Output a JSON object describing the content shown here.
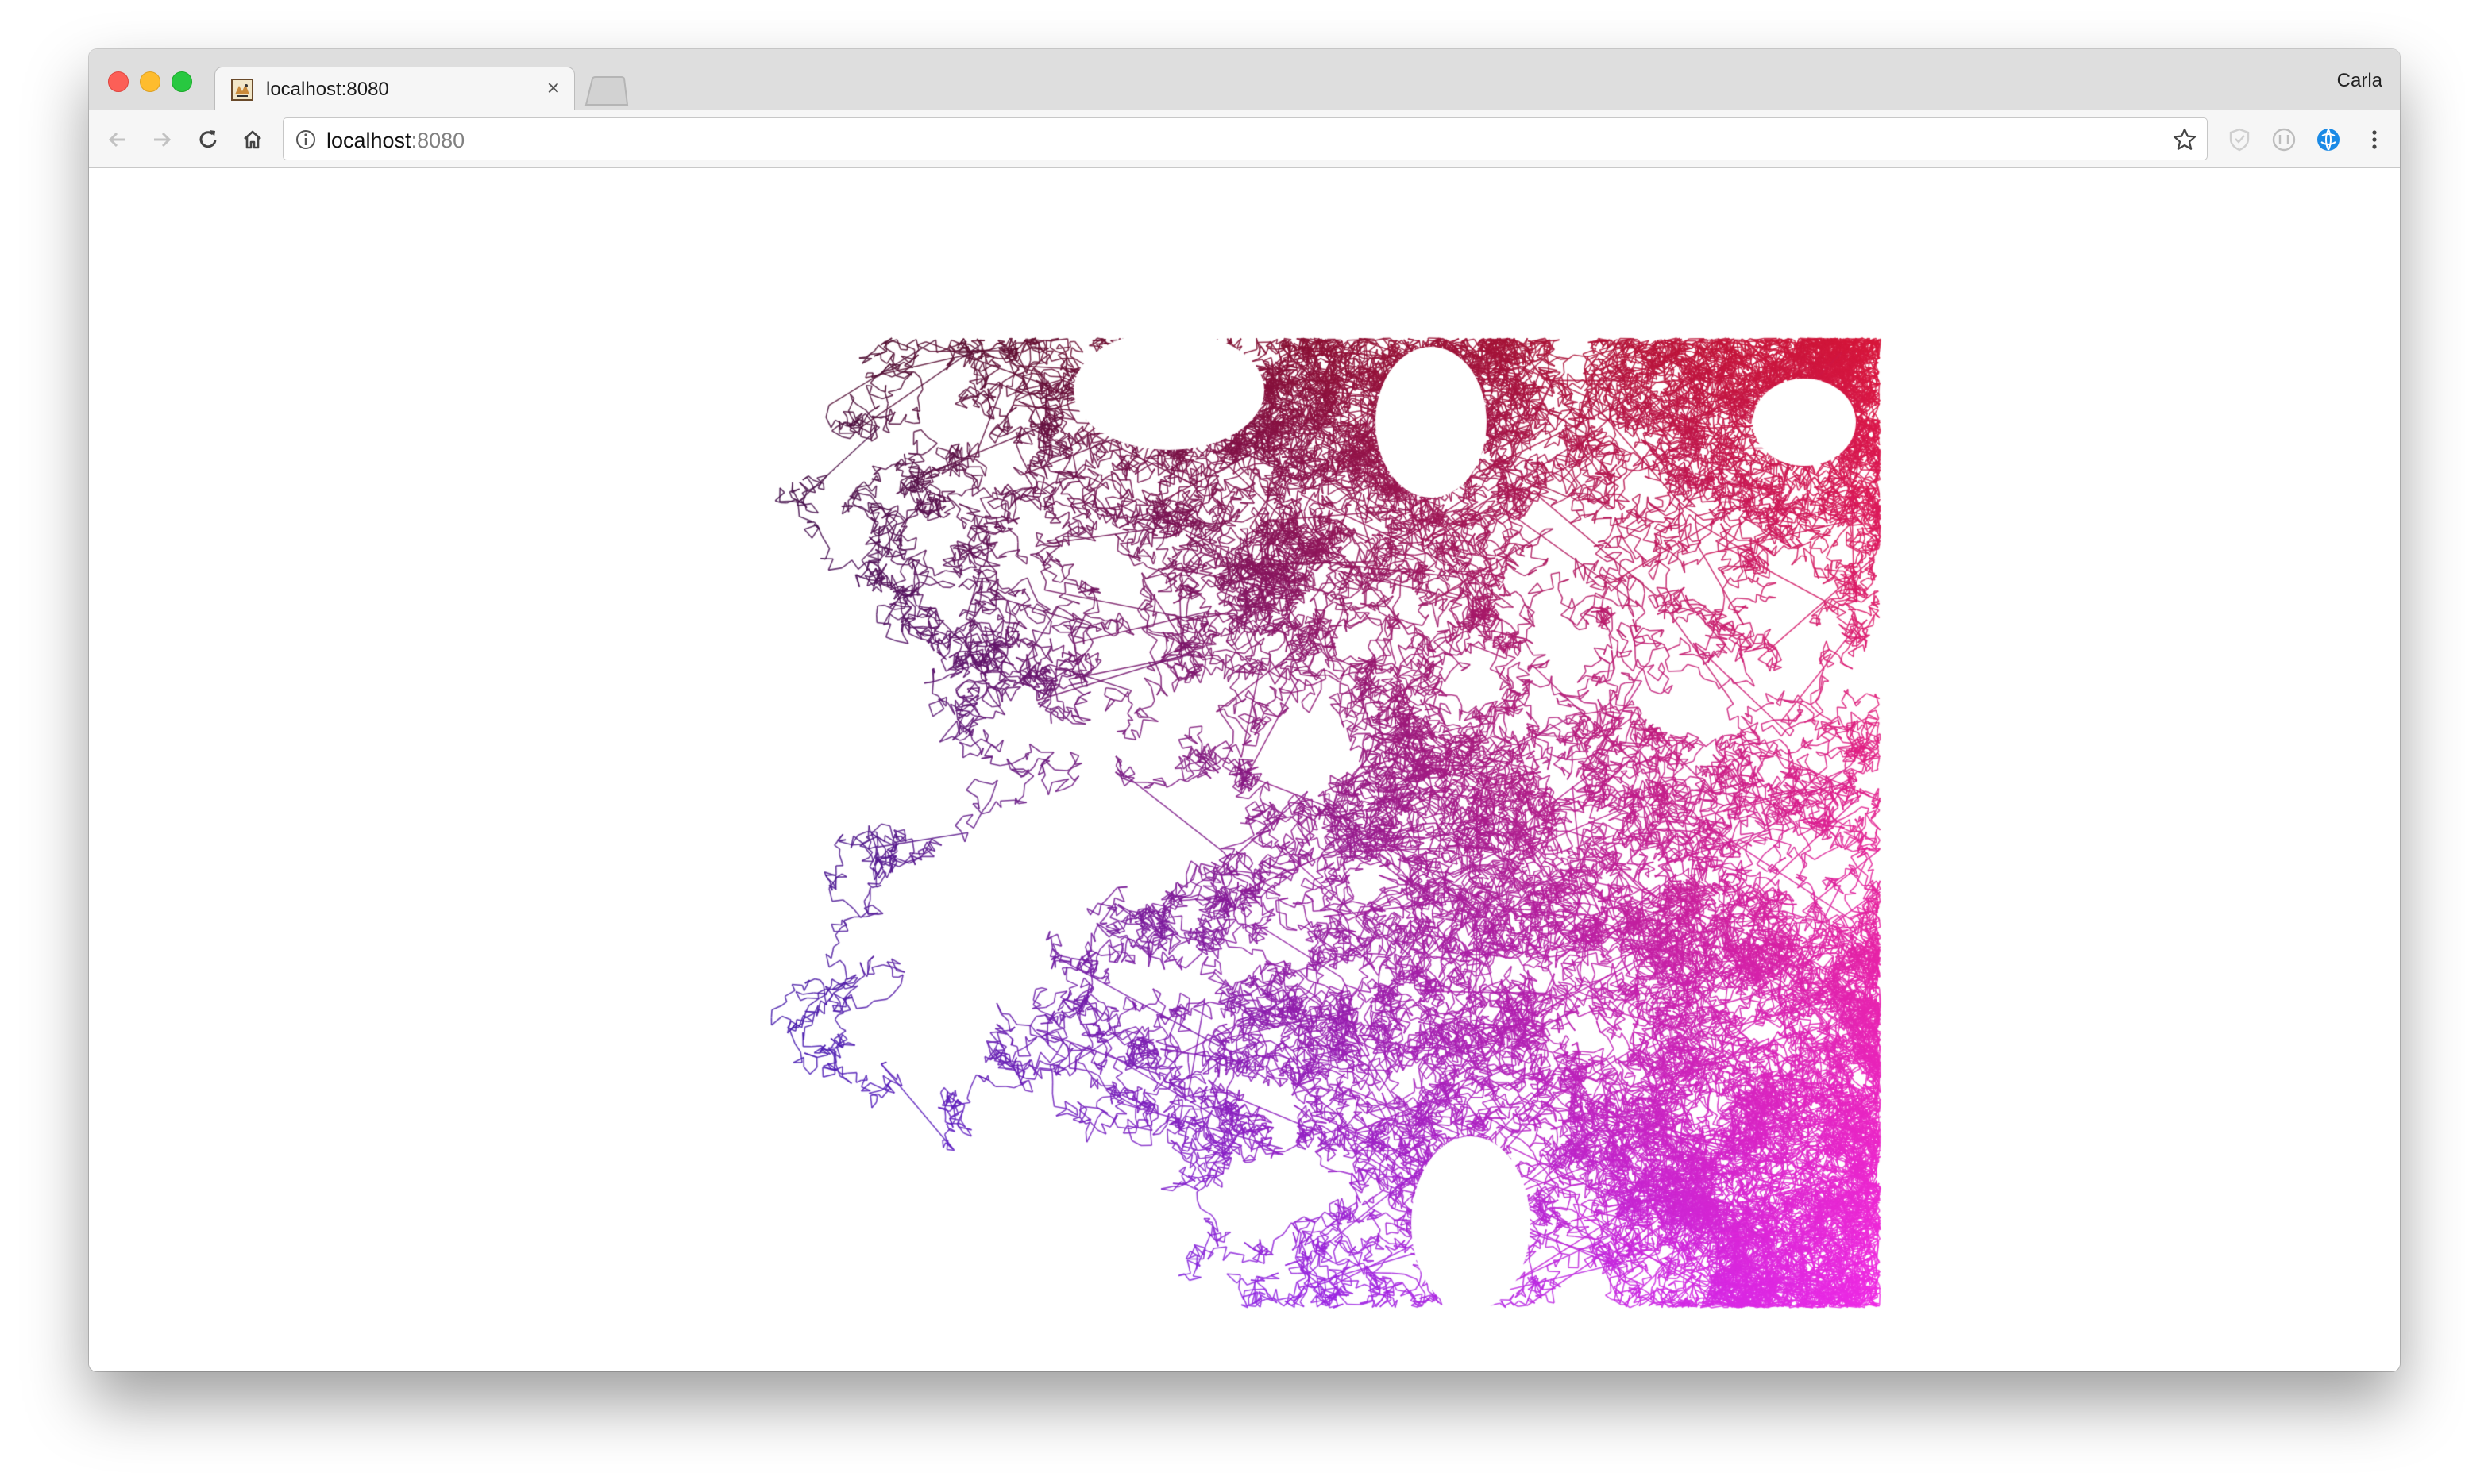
{
  "browser": {
    "profile_name": "Carla",
    "tabs": [
      {
        "title": "localhost:8080",
        "favicon": "pixel-art-favicon",
        "active": true
      }
    ],
    "new_tab_icon": "new-tab-icon",
    "toolbar": {
      "back_icon": "back-arrow-icon",
      "forward_icon": "forward-arrow-icon",
      "reload_icon": "reload-icon",
      "home_icon": "home-icon",
      "info_icon": "info-icon",
      "bookmark_icon": "star-icon",
      "extensions": [
        "shield-extension-icon",
        "circle-extension-icon",
        "globe-extension-icon"
      ],
      "menu_icon": "kebab-menu-icon"
    },
    "address": {
      "host": "localhost",
      "port": ":8080"
    }
  },
  "canvas": {
    "description_colors": {
      "top_left": "#2a0a2a",
      "top_right": "#d8163a",
      "bottom_left": "#2a1ee0",
      "bottom_right": "#f02ae6"
    }
  }
}
